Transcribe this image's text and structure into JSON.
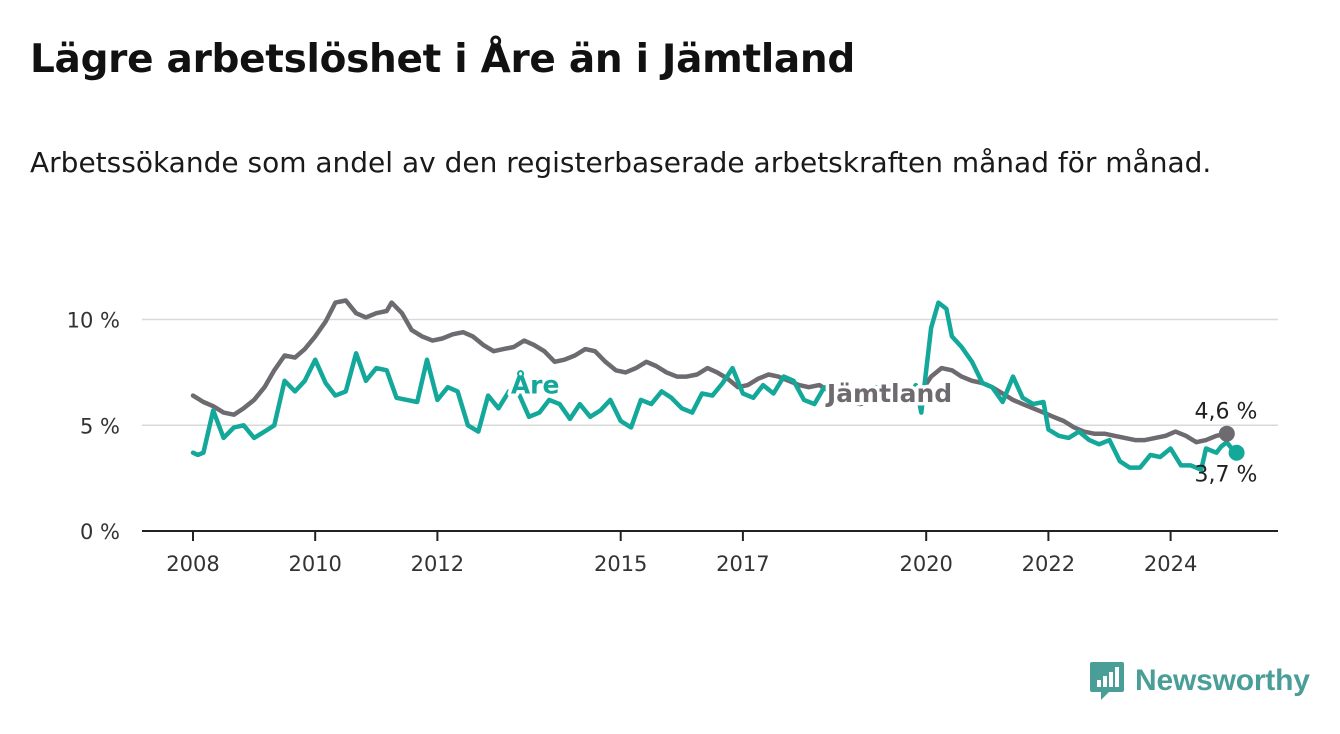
{
  "header": {
    "title": "Lägre arbetslöshet i Åre än i Jämtland",
    "subtitle": "Arbetssökande som andel av den registerbaserade arbetskraften månad för månad."
  },
  "brand": {
    "name": "Newsworthy",
    "icon": "newsworthy-logo-icon",
    "color": "#4a9e98"
  },
  "chart_data": {
    "type": "line",
    "title": "Lägre arbetslöshet i Åre än i Jämtland",
    "subtitle": "Arbetssökande som andel av den registerbaserade arbetskraften månad för månad.",
    "ylim": [
      0,
      12
    ],
    "y_ticks": [
      {
        "value": 0,
        "label": "0 %"
      },
      {
        "value": 5,
        "label": "5 %"
      },
      {
        "value": 10,
        "label": "10 %"
      }
    ],
    "x_ticks": [
      {
        "value": 2008,
        "label": "2008"
      },
      {
        "value": 2010,
        "label": "2010"
      },
      {
        "value": 2012,
        "label": "2012"
      },
      {
        "value": 2015,
        "label": "2015"
      },
      {
        "value": 2017,
        "label": "2017"
      },
      {
        "value": 2020,
        "label": "2020"
      },
      {
        "value": 2022,
        "label": "2022"
      },
      {
        "value": 2024,
        "label": "2024"
      }
    ],
    "grid": true,
    "series": [
      {
        "name": "Jämtland",
        "color": "#6d6a70",
        "end_label": "4,6 %",
        "points": [
          [
            2008.0,
            6.4
          ],
          [
            2008.17,
            6.1
          ],
          [
            2008.33,
            5.9
          ],
          [
            2008.5,
            5.6
          ],
          [
            2008.67,
            5.5
          ],
          [
            2008.83,
            5.8
          ],
          [
            2009.0,
            6.2
          ],
          [
            2009.17,
            6.8
          ],
          [
            2009.33,
            7.6
          ],
          [
            2009.5,
            8.3
          ],
          [
            2009.67,
            8.2
          ],
          [
            2009.83,
            8.6
          ],
          [
            2010.0,
            9.2
          ],
          [
            2010.17,
            9.9
          ],
          [
            2010.33,
            10.8
          ],
          [
            2010.5,
            10.9
          ],
          [
            2010.67,
            10.3
          ],
          [
            2010.83,
            10.1
          ],
          [
            2011.0,
            10.3
          ],
          [
            2011.17,
            10.4
          ],
          [
            2011.25,
            10.8
          ],
          [
            2011.42,
            10.3
          ],
          [
            2011.58,
            9.5
          ],
          [
            2011.75,
            9.2
          ],
          [
            2011.92,
            9.0
          ],
          [
            2012.08,
            9.1
          ],
          [
            2012.25,
            9.3
          ],
          [
            2012.42,
            9.4
          ],
          [
            2012.58,
            9.2
          ],
          [
            2012.75,
            8.8
          ],
          [
            2012.92,
            8.5
          ],
          [
            2013.08,
            8.6
          ],
          [
            2013.25,
            8.7
          ],
          [
            2013.42,
            9.0
          ],
          [
            2013.58,
            8.8
          ],
          [
            2013.75,
            8.5
          ],
          [
            2013.92,
            8.0
          ],
          [
            2014.08,
            8.1
          ],
          [
            2014.25,
            8.3
          ],
          [
            2014.42,
            8.6
          ],
          [
            2014.58,
            8.5
          ],
          [
            2014.75,
            8.0
          ],
          [
            2014.92,
            7.6
          ],
          [
            2015.08,
            7.5
          ],
          [
            2015.25,
            7.7
          ],
          [
            2015.42,
            8.0
          ],
          [
            2015.58,
            7.8
          ],
          [
            2015.75,
            7.5
          ],
          [
            2015.92,
            7.3
          ],
          [
            2016.08,
            7.3
          ],
          [
            2016.25,
            7.4
          ],
          [
            2016.42,
            7.7
          ],
          [
            2016.58,
            7.5
          ],
          [
            2016.75,
            7.2
          ],
          [
            2016.92,
            6.8
          ],
          [
            2017.08,
            6.9
          ],
          [
            2017.25,
            7.2
          ],
          [
            2017.42,
            7.4
          ],
          [
            2017.58,
            7.3
          ],
          [
            2017.75,
            7.1
          ],
          [
            2017.92,
            6.9
          ],
          [
            2018.08,
            6.8
          ],
          [
            2018.25,
            6.9
          ],
          [
            2018.42,
            6.6
          ],
          [
            2018.58,
            6.3
          ],
          [
            2018.75,
            6.1
          ],
          [
            2018.92,
            6.0
          ],
          [
            2019.08,
            6.1
          ],
          [
            2019.25,
            6.2
          ],
          [
            2019.42,
            6.3
          ],
          [
            2019.58,
            6.4
          ],
          [
            2019.75,
            6.5
          ],
          [
            2019.92,
            6.6
          ],
          [
            2020.08,
            7.3
          ],
          [
            2020.25,
            7.7
          ],
          [
            2020.42,
            7.6
          ],
          [
            2020.58,
            7.3
          ],
          [
            2020.75,
            7.1
          ],
          [
            2020.92,
            7.0
          ],
          [
            2021.08,
            6.8
          ],
          [
            2021.25,
            6.5
          ],
          [
            2021.42,
            6.2
          ],
          [
            2021.58,
            6.0
          ],
          [
            2021.75,
            5.8
          ],
          [
            2021.92,
            5.6
          ],
          [
            2022.08,
            5.4
          ],
          [
            2022.25,
            5.2
          ],
          [
            2022.42,
            4.9
          ],
          [
            2022.58,
            4.7
          ],
          [
            2022.75,
            4.6
          ],
          [
            2022.92,
            4.6
          ],
          [
            2023.08,
            4.5
          ],
          [
            2023.25,
            4.4
          ],
          [
            2023.42,
            4.3
          ],
          [
            2023.58,
            4.3
          ],
          [
            2023.75,
            4.4
          ],
          [
            2023.92,
            4.5
          ],
          [
            2024.08,
            4.7
          ],
          [
            2024.25,
            4.5
          ],
          [
            2024.42,
            4.2
          ],
          [
            2024.58,
            4.3
          ],
          [
            2024.75,
            4.5
          ],
          [
            2024.92,
            4.6
          ]
        ]
      },
      {
        "name": "Åre",
        "color": "#14a89a",
        "end_label": "3,7 %",
        "points": [
          [
            2008.0,
            3.7
          ],
          [
            2008.08,
            3.6
          ],
          [
            2008.17,
            3.7
          ],
          [
            2008.33,
            5.7
          ],
          [
            2008.5,
            4.4
          ],
          [
            2008.67,
            4.9
          ],
          [
            2008.83,
            5.0
          ],
          [
            2009.0,
            4.4
          ],
          [
            2009.17,
            4.7
          ],
          [
            2009.33,
            5.0
          ],
          [
            2009.5,
            7.1
          ],
          [
            2009.67,
            6.6
          ],
          [
            2009.83,
            7.1
          ],
          [
            2010.0,
            8.1
          ],
          [
            2010.17,
            7.0
          ],
          [
            2010.33,
            6.4
          ],
          [
            2010.5,
            6.6
          ],
          [
            2010.67,
            8.4
          ],
          [
            2010.83,
            7.1
          ],
          [
            2011.0,
            7.7
          ],
          [
            2011.17,
            7.6
          ],
          [
            2011.33,
            6.3
          ],
          [
            2011.5,
            6.2
          ],
          [
            2011.67,
            6.1
          ],
          [
            2011.83,
            8.1
          ],
          [
            2012.0,
            6.2
          ],
          [
            2012.17,
            6.8
          ],
          [
            2012.33,
            6.6
          ],
          [
            2012.5,
            5.0
          ],
          [
            2012.67,
            4.7
          ],
          [
            2012.83,
            6.4
          ],
          [
            2013.0,
            5.8
          ],
          [
            2013.17,
            6.6
          ],
          [
            2013.33,
            6.5
          ],
          [
            2013.5,
            5.4
          ],
          [
            2013.67,
            5.6
          ],
          [
            2013.83,
            6.2
          ],
          [
            2014.0,
            6.0
          ],
          [
            2014.17,
            5.3
          ],
          [
            2014.33,
            6.0
          ],
          [
            2014.5,
            5.4
          ],
          [
            2014.67,
            5.7
          ],
          [
            2014.83,
            6.2
          ],
          [
            2015.0,
            5.2
          ],
          [
            2015.17,
            4.9
          ],
          [
            2015.33,
            6.2
          ],
          [
            2015.5,
            6.0
          ],
          [
            2015.67,
            6.6
          ],
          [
            2015.83,
            6.3
          ],
          [
            2016.0,
            5.8
          ],
          [
            2016.17,
            5.6
          ],
          [
            2016.33,
            6.5
          ],
          [
            2016.5,
            6.4
          ],
          [
            2016.67,
            7.0
          ],
          [
            2016.83,
            7.7
          ],
          [
            2017.0,
            6.5
          ],
          [
            2017.17,
            6.3
          ],
          [
            2017.33,
            6.9
          ],
          [
            2017.5,
            6.5
          ],
          [
            2017.67,
            7.3
          ],
          [
            2017.83,
            7.1
          ],
          [
            2018.0,
            6.2
          ],
          [
            2018.17,
            6.0
          ],
          [
            2018.33,
            6.8
          ],
          [
            2018.5,
            6.5
          ],
          [
            2018.67,
            6.9
          ],
          [
            2018.83,
            6.4
          ],
          [
            2019.0,
            6.3
          ],
          [
            2019.17,
            6.8
          ],
          [
            2019.33,
            6.6
          ],
          [
            2019.5,
            6.9
          ],
          [
            2019.67,
            6.2
          ],
          [
            2019.83,
            6.9
          ],
          [
            2019.92,
            5.6
          ],
          [
            2020.08,
            9.6
          ],
          [
            2020.2,
            10.8
          ],
          [
            2020.33,
            10.5
          ],
          [
            2020.42,
            9.2
          ],
          [
            2020.58,
            8.7
          ],
          [
            2020.75,
            8.0
          ],
          [
            2020.92,
            7.0
          ],
          [
            2021.08,
            6.8
          ],
          [
            2021.25,
            6.1
          ],
          [
            2021.42,
            7.3
          ],
          [
            2021.58,
            6.3
          ],
          [
            2021.75,
            6.0
          ],
          [
            2021.92,
            6.1
          ],
          [
            2022.0,
            4.8
          ],
          [
            2022.17,
            4.5
          ],
          [
            2022.33,
            4.4
          ],
          [
            2022.5,
            4.7
          ],
          [
            2022.67,
            4.3
          ],
          [
            2022.83,
            4.1
          ],
          [
            2023.0,
            4.3
          ],
          [
            2023.17,
            3.3
          ],
          [
            2023.33,
            3.0
          ],
          [
            2023.5,
            3.0
          ],
          [
            2023.67,
            3.6
          ],
          [
            2023.83,
            3.5
          ],
          [
            2024.0,
            3.9
          ],
          [
            2024.17,
            3.1
          ],
          [
            2024.33,
            3.1
          ],
          [
            2024.5,
            2.9
          ],
          [
            2024.58,
            3.9
          ],
          [
            2024.75,
            3.7
          ],
          [
            2024.83,
            4.0
          ],
          [
            2024.92,
            4.2
          ],
          [
            2025.0,
            3.9
          ],
          [
            2025.08,
            3.7
          ]
        ]
      }
    ],
    "series_labels": [
      {
        "series": "Åre",
        "text": "Åre",
        "at": [
          2013.6,
          6.5
        ]
      },
      {
        "series": "Jämtland",
        "text": "Jämtland",
        "at": [
          2019.4,
          6.1
        ]
      }
    ]
  }
}
